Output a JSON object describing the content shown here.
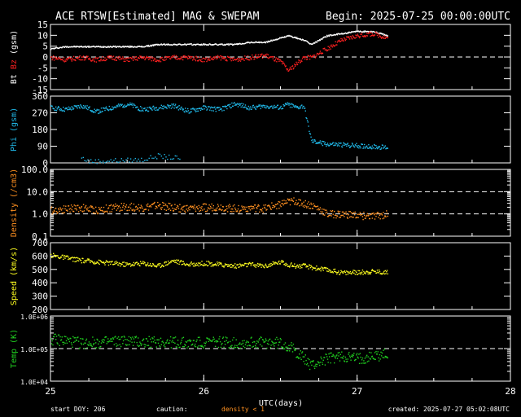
{
  "header": {
    "title": "ACE RTSW[Estimated] MAG & SWEPAM",
    "begin": "Begin: 2025-07-25 00:00:00UTC"
  },
  "footer": {
    "start_doy": "start DOY: 206",
    "caution_label": "caution:",
    "caution_text": "density < 1",
    "created": "created: 2025-07-27 05:02:08UTC"
  },
  "colors": {
    "background": "#000000",
    "axes": "#ffffff",
    "bt": "#ffffff",
    "bz": "#ff2020",
    "phi": "#20b8e8",
    "density": "#ff9020",
    "speed": "#ffff20",
    "temp": "#20d020",
    "caution": "#ff9020"
  },
  "chart_data": [
    {
      "type": "scatter",
      "panel": "mag",
      "ylabel_parts": [
        "Bt",
        "Bz",
        "(gsm)"
      ],
      "ylim": [
        -15,
        15
      ],
      "yticks": [
        -15,
        -10,
        -5,
        0,
        5,
        10,
        15
      ],
      "ytick_labels": [
        "-15",
        "-10",
        "-5",
        "0",
        "5",
        "10",
        "15"
      ],
      "dashed_levels": [
        0
      ],
      "series": [
        {
          "name": "Bt",
          "color": "#ffffff",
          "x": [
            0,
            0.1,
            0.2,
            0.3,
            0.4,
            0.5,
            0.6,
            0.7,
            0.8,
            0.9,
            1.0,
            1.1,
            1.2,
            1.3,
            1.4,
            1.5,
            1.55,
            1.6,
            1.65,
            1.7,
            1.8,
            1.9,
            2.0,
            2.1,
            2.2
          ],
          "values": [
            4,
            5,
            5,
            5,
            5,
            5,
            5,
            6,
            6,
            6,
            6,
            6,
            6,
            7,
            7,
            9,
            10,
            9,
            8,
            6,
            10,
            11,
            12,
            12,
            10
          ]
        },
        {
          "name": "Bz",
          "color": "#ff2020",
          "x": [
            0,
            0.1,
            0.2,
            0.3,
            0.4,
            0.5,
            0.6,
            0.7,
            0.8,
            0.9,
            1.0,
            1.1,
            1.2,
            1.3,
            1.4,
            1.5,
            1.55,
            1.6,
            1.65,
            1.7,
            1.8,
            1.9,
            2.0,
            2.1,
            2.2
          ],
          "values": [
            0,
            -1,
            0,
            -1,
            0,
            -1,
            0,
            -1,
            0,
            0,
            -1,
            0,
            -1,
            0,
            1,
            -2,
            -6,
            -3,
            0,
            0,
            4,
            8,
            10,
            11,
            9
          ]
        }
      ]
    },
    {
      "type": "scatter",
      "panel": "phi",
      "ylabel": "Phi (gsm)",
      "ylim": [
        0,
        360
      ],
      "yticks": [
        0,
        90,
        180,
        270,
        360
      ],
      "ytick_labels": [
        "0",
        "90",
        "180",
        "270",
        "360"
      ],
      "series": [
        {
          "name": "Phi",
          "color": "#20b8e8",
          "x": [
            0,
            0.1,
            0.2,
            0.3,
            0.4,
            0.5,
            0.6,
            0.7,
            0.8,
            0.9,
            1.0,
            1.1,
            1.2,
            1.3,
            1.4,
            1.5,
            1.55,
            1.6,
            1.65,
            1.7,
            1.8,
            1.9,
            2.0,
            2.1,
            2.2
          ],
          "values": [
            300,
            290,
            310,
            280,
            300,
            320,
            290,
            300,
            310,
            280,
            300,
            290,
            320,
            300,
            310,
            300,
            320,
            300,
            310,
            120,
            105,
            100,
            95,
            90,
            85
          ]
        },
        {
          "name": "Phi low",
          "color": "#20b8e8",
          "x": [
            0.2,
            0.25,
            0.6,
            0.7,
            0.85
          ],
          "values": [
            30,
            10,
            20,
            40,
            25
          ]
        }
      ]
    },
    {
      "type": "scatter",
      "panel": "density",
      "ylabel": "Density (/cm3)",
      "scale": "log",
      "ylim": [
        0.1,
        100
      ],
      "yticks": [
        0.1,
        1,
        10,
        100
      ],
      "ytick_labels": [
        "0.1",
        "1.0",
        "10.0",
        "100.0"
      ],
      "dashed_levels": [
        1,
        10
      ],
      "series": [
        {
          "name": "Density",
          "color": "#ff9020",
          "x": [
            0,
            0.1,
            0.2,
            0.3,
            0.4,
            0.5,
            0.6,
            0.7,
            0.8,
            0.9,
            1.0,
            1.1,
            1.2,
            1.3,
            1.4,
            1.5,
            1.55,
            1.6,
            1.65,
            1.7,
            1.8,
            1.9,
            2.0,
            2.1,
            2.2
          ],
          "values": [
            1.5,
            1.8,
            2.0,
            1.5,
            2.0,
            2.2,
            2.0,
            2.5,
            2.0,
            1.8,
            2.0,
            2.2,
            1.8,
            2.0,
            1.8,
            3.0,
            3.5,
            4.0,
            3.0,
            2.5,
            1.0,
            1.0,
            0.9,
            0.8,
            1.0
          ]
        }
      ]
    },
    {
      "type": "scatter",
      "panel": "speed",
      "ylabel": "Speed (km/s)",
      "ylim": [
        200,
        700
      ],
      "yticks": [
        200,
        300,
        400,
        500,
        600,
        700
      ],
      "ytick_labels": [
        "200",
        "300",
        "400",
        "500",
        "600",
        "700"
      ],
      "series": [
        {
          "name": "Speed",
          "color": "#ffff20",
          "x": [
            0,
            0.1,
            0.2,
            0.3,
            0.4,
            0.5,
            0.6,
            0.7,
            0.8,
            0.9,
            1.0,
            1.1,
            1.2,
            1.3,
            1.4,
            1.5,
            1.55,
            1.6,
            1.65,
            1.7,
            1.8,
            1.9,
            2.0,
            2.1,
            2.2
          ],
          "values": [
            610,
            590,
            570,
            560,
            550,
            540,
            550,
            530,
            570,
            540,
            550,
            540,
            530,
            540,
            530,
            560,
            540,
            530,
            530,
            520,
            500,
            480,
            480,
            490,
            480
          ]
        }
      ]
    },
    {
      "type": "scatter",
      "panel": "temp",
      "ylabel": "Temp (K)",
      "scale": "log",
      "ylim": [
        10000,
        1000000
      ],
      "yticks": [
        10000,
        100000,
        1000000
      ],
      "ytick_labels": [
        "1.0E+04",
        "1.0E+05",
        "1.0E+06"
      ],
      "dashed_levels": [
        100000
      ],
      "series": [
        {
          "name": "Temp",
          "color": "#20d020",
          "x": [
            0,
            0.1,
            0.2,
            0.3,
            0.4,
            0.5,
            0.6,
            0.7,
            0.8,
            0.9,
            1.0,
            1.1,
            1.2,
            1.3,
            1.4,
            1.5,
            1.55,
            1.6,
            1.65,
            1.7,
            1.8,
            1.9,
            2.0,
            2.1,
            2.2
          ],
          "values": [
            200000,
            180000,
            150000,
            160000,
            170000,
            180000,
            160000,
            170000,
            160000,
            150000,
            160000,
            170000,
            150000,
            160000,
            160000,
            150000,
            120000,
            80000,
            50000,
            30000,
            50000,
            60000,
            50000,
            60000,
            70000
          ]
        }
      ]
    },
    {
      "type": "scatter",
      "panel": "time_axis",
      "xlabel": "UTC(days)",
      "xlim": [
        0,
        3
      ],
      "xticks": [
        0,
        1,
        2,
        3
      ],
      "xtick_labels": [
        "25",
        "26",
        "27",
        "28"
      ]
    }
  ]
}
